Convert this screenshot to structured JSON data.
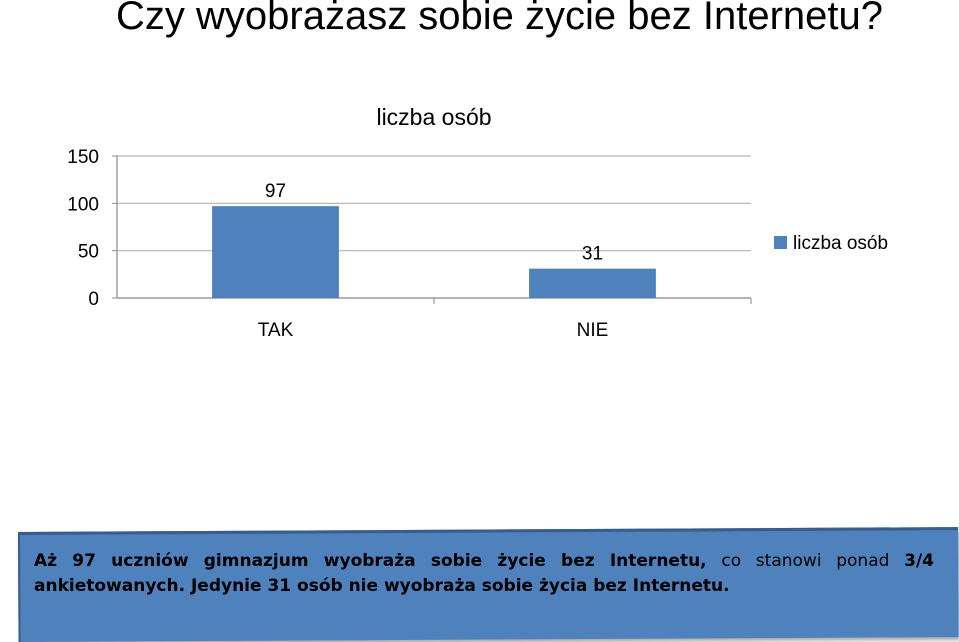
{
  "slide": {
    "title": "Czy wyobrażasz sobie życie bez Internetu?"
  },
  "chart_data": {
    "type": "bar",
    "title": "liczba osób",
    "categories": [
      "TAK",
      "NIE"
    ],
    "series": [
      {
        "name": "liczba osób",
        "values": [
          97,
          31
        ],
        "color": "#4f81bd"
      }
    ],
    "ylim": [
      0,
      150
    ],
    "yticks": [
      0,
      50,
      100,
      150
    ],
    "data_labels": true,
    "grid": true,
    "legend": "right"
  },
  "caption": {
    "bold_part": "Aż 97 uczniów gimnazjum wyobraża sobie życie bez Internetu,",
    "normal_part": " co stanowi ponad ",
    "bold_fraction": "3/4 ankietowanych. Jedynie 31 osób nie wyobraża sobie życia bez Internetu."
  }
}
